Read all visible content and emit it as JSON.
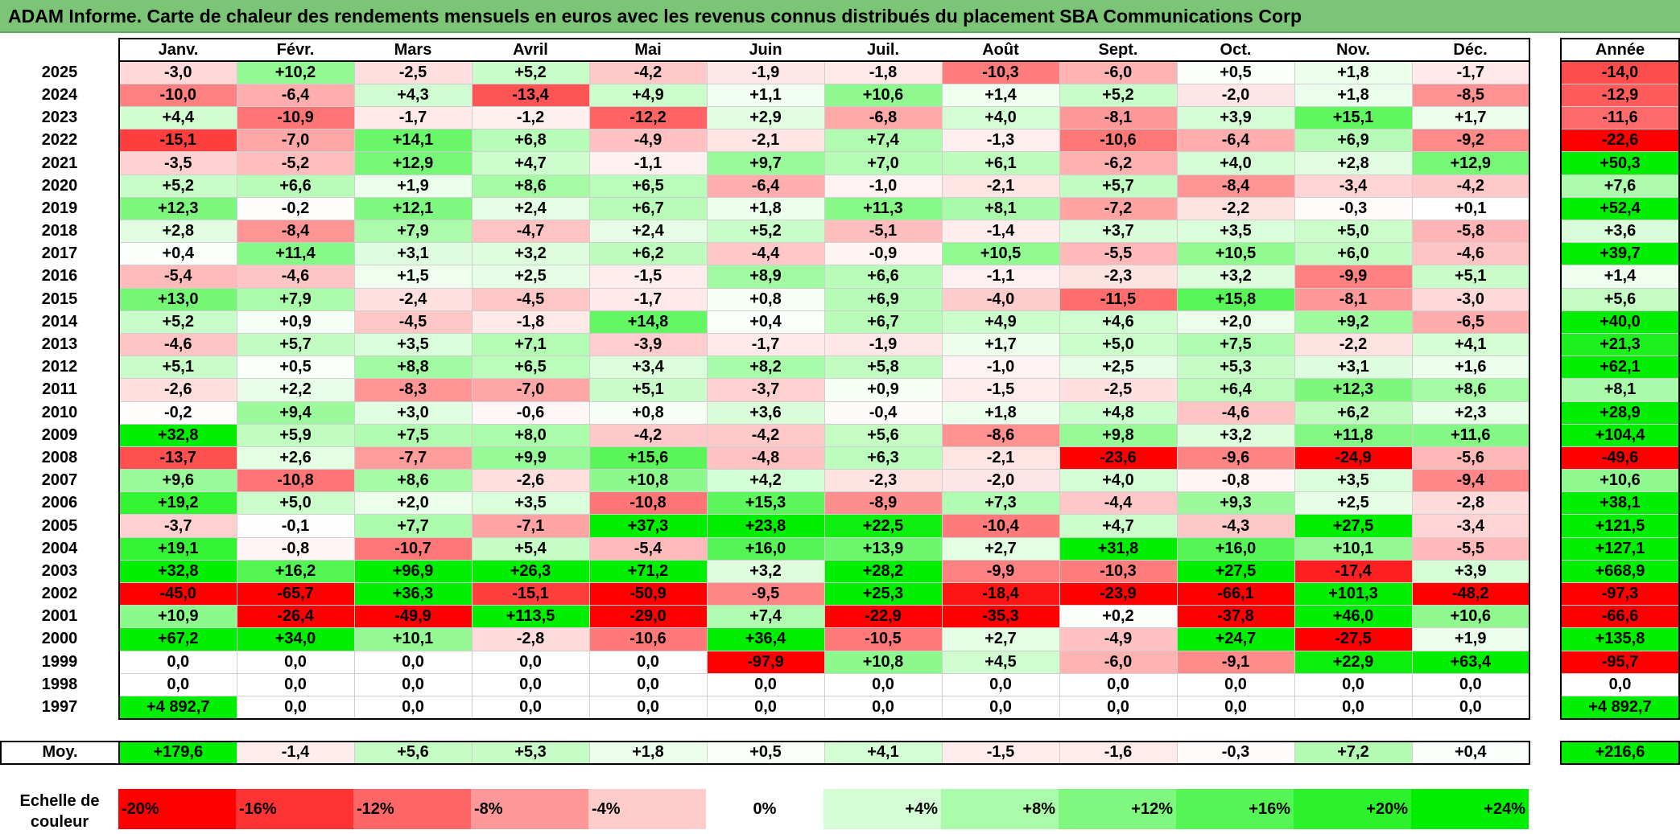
{
  "title": "ADAM Informe. Carte de chaleur des rendements mensuels en euros avec les revenus connus distribués du placement SBA Communications Corp",
  "chart_data": {
    "type": "heatmap",
    "title": "ADAM Informe. Carte de chaleur des rendements mensuels en euros avec les revenus connus distribués du placement SBA Communications Corp",
    "columns": [
      "Janv.",
      "Févr.",
      "Mars",
      "Avril",
      "Mai",
      "Juin",
      "Juil.",
      "Août",
      "Sept.",
      "Oct.",
      "Nov.",
      "Déc."
    ],
    "year_header": "Année",
    "rows": [
      {
        "year": "2025",
        "values": [
          "-3,0",
          "+10,2",
          "-2,5",
          "+5,2",
          "-4,2",
          "-1,9",
          "-1,8",
          "-10,3",
          "-6,0",
          "+0,5",
          "+1,8",
          "-1,7"
        ],
        "annual": "-14,0"
      },
      {
        "year": "2024",
        "values": [
          "-10,0",
          "-6,4",
          "+4,3",
          "-13,4",
          "+4,9",
          "+1,1",
          "+10,6",
          "+1,4",
          "+5,2",
          "-2,0",
          "+1,8",
          "-8,5"
        ],
        "annual": "-12,9"
      },
      {
        "year": "2023",
        "values": [
          "+4,4",
          "-10,9",
          "-1,7",
          "-1,2",
          "-12,2",
          "+2,9",
          "-6,8",
          "+4,0",
          "-8,1",
          "+3,9",
          "+15,1",
          "+1,7"
        ],
        "annual": "-11,6"
      },
      {
        "year": "2022",
        "values": [
          "-15,1",
          "-7,0",
          "+14,1",
          "+6,8",
          "-4,9",
          "-2,1",
          "+7,4",
          "-1,3",
          "-10,6",
          "-6,4",
          "+6,9",
          "-9,2"
        ],
        "annual": "-22,6"
      },
      {
        "year": "2021",
        "values": [
          "-3,5",
          "-5,2",
          "+12,9",
          "+4,7",
          "-1,1",
          "+9,7",
          "+7,0",
          "+6,1",
          "-6,2",
          "+4,0",
          "+2,8",
          "+12,9"
        ],
        "annual": "+50,3"
      },
      {
        "year": "2020",
        "values": [
          "+5,2",
          "+6,6",
          "+1,9",
          "+8,6",
          "+6,5",
          "-6,4",
          "-1,0",
          "-2,1",
          "+5,7",
          "-8,4",
          "-3,4",
          "-4,2"
        ],
        "annual": "+7,6"
      },
      {
        "year": "2019",
        "values": [
          "+12,3",
          "-0,2",
          "+12,1",
          "+2,4",
          "+6,7",
          "+1,8",
          "+11,3",
          "+8,1",
          "-7,2",
          "-2,2",
          "-0,3",
          "+0,1"
        ],
        "annual": "+52,4"
      },
      {
        "year": "2018",
        "values": [
          "+2,8",
          "-8,4",
          "+7,9",
          "-4,7",
          "+2,4",
          "+5,2",
          "-5,1",
          "-1,4",
          "+3,7",
          "+3,5",
          "+5,0",
          "-5,8"
        ],
        "annual": "+3,6"
      },
      {
        "year": "2017",
        "values": [
          "+0,4",
          "+11,4",
          "+3,1",
          "+3,2",
          "+6,2",
          "-4,4",
          "-0,9",
          "+10,5",
          "-5,5",
          "+10,5",
          "+6,0",
          "-4,6"
        ],
        "annual": "+39,7"
      },
      {
        "year": "2016",
        "values": [
          "-5,4",
          "-4,6",
          "+1,5",
          "+2,5",
          "-1,5",
          "+8,9",
          "+6,6",
          "-1,1",
          "-2,3",
          "+3,2",
          "-9,9",
          "+5,1"
        ],
        "annual": "+1,4"
      },
      {
        "year": "2015",
        "values": [
          "+13,0",
          "+7,9",
          "-2,4",
          "-4,5",
          "-1,7",
          "+0,8",
          "+6,9",
          "-4,0",
          "-11,5",
          "+15,8",
          "-8,1",
          "-3,0"
        ],
        "annual": "+5,6"
      },
      {
        "year": "2014",
        "values": [
          "+5,2",
          "+0,9",
          "-4,5",
          "-1,8",
          "+14,8",
          "+0,4",
          "+6,7",
          "+4,9",
          "+4,6",
          "+2,0",
          "+9,2",
          "-6,5"
        ],
        "annual": "+40,0"
      },
      {
        "year": "2013",
        "values": [
          "-4,6",
          "+5,7",
          "+3,5",
          "+7,1",
          "-3,9",
          "-1,7",
          "-1,9",
          "+1,7",
          "+5,0",
          "+7,5",
          "-2,2",
          "+4,1"
        ],
        "annual": "+21,3"
      },
      {
        "year": "2012",
        "values": [
          "+5,1",
          "+0,5",
          "+8,8",
          "+6,5",
          "+3,4",
          "+8,2",
          "+5,8",
          "-1,0",
          "+2,5",
          "+5,3",
          "+3,1",
          "+1,6"
        ],
        "annual": "+62,1"
      },
      {
        "year": "2011",
        "values": [
          "-2,6",
          "+2,2",
          "-8,3",
          "-7,0",
          "+5,1",
          "-3,7",
          "+0,9",
          "-1,5",
          "-2,5",
          "+6,4",
          "+12,3",
          "+8,6"
        ],
        "annual": "+8,1"
      },
      {
        "year": "2010",
        "values": [
          "-0,2",
          "+9,4",
          "+3,0",
          "-0,6",
          "+0,8",
          "+3,6",
          "-0,4",
          "+1,8",
          "+4,8",
          "-4,6",
          "+6,2",
          "+2,3"
        ],
        "annual": "+28,9"
      },
      {
        "year": "2009",
        "values": [
          "+32,8",
          "+5,9",
          "+7,5",
          "+8,0",
          "-4,2",
          "-4,2",
          "+5,6",
          "-8,6",
          "+9,8",
          "+3,2",
          "+11,8",
          "+11,6"
        ],
        "annual": "+104,4"
      },
      {
        "year": "2008",
        "values": [
          "-13,7",
          "+2,6",
          "-7,7",
          "+9,9",
          "+15,6",
          "-4,8",
          "+6,3",
          "-2,1",
          "-23,6",
          "-9,6",
          "-24,9",
          "-5,6"
        ],
        "annual": "-49,6"
      },
      {
        "year": "2007",
        "values": [
          "+9,6",
          "-10,8",
          "+8,6",
          "-2,6",
          "+10,8",
          "+4,2",
          "-2,3",
          "-2,0",
          "+4,0",
          "-0,8",
          "+3,5",
          "-9,4"
        ],
        "annual": "+10,6"
      },
      {
        "year": "2006",
        "values": [
          "+19,2",
          "+5,0",
          "+2,0",
          "+3,5",
          "-10,8",
          "+15,3",
          "-8,9",
          "+7,3",
          "-4,4",
          "+9,3",
          "+2,5",
          "-2,8"
        ],
        "annual": "+38,1"
      },
      {
        "year": "2005",
        "values": [
          "-3,7",
          "-0,1",
          "+7,7",
          "-7,1",
          "+37,3",
          "+23,8",
          "+22,5",
          "-10,4",
          "+4,7",
          "-4,3",
          "+27,5",
          "-3,4"
        ],
        "annual": "+121,5"
      },
      {
        "year": "2004",
        "values": [
          "+19,1",
          "-0,8",
          "-10,7",
          "+5,4",
          "-5,4",
          "+16,0",
          "+13,9",
          "+2,7",
          "+31,8",
          "+16,0",
          "+10,1",
          "-5,5"
        ],
        "annual": "+127,1"
      },
      {
        "year": "2003",
        "values": [
          "+32,8",
          "+16,2",
          "+96,9",
          "+26,3",
          "+71,2",
          "+3,2",
          "+28,2",
          "-9,9",
          "-10,3",
          "+27,5",
          "-17,4",
          "+3,9"
        ],
        "annual": "+668,9"
      },
      {
        "year": "2002",
        "values": [
          "-45,0",
          "-65,7",
          "+36,3",
          "-15,1",
          "-50,9",
          "-9,5",
          "+25,3",
          "-18,4",
          "-23,9",
          "-66,1",
          "+101,3",
          "-48,2"
        ],
        "annual": "-97,3"
      },
      {
        "year": "2001",
        "values": [
          "+10,9",
          "-26,4",
          "-49,9",
          "+113,5",
          "-29,0",
          "+7,4",
          "-22,9",
          "-35,3",
          "+0,2",
          "-37,8",
          "+46,0",
          "+10,6"
        ],
        "annual": "-66,6"
      },
      {
        "year": "2000",
        "values": [
          "+67,2",
          "+34,0",
          "+10,1",
          "-2,8",
          "-10,6",
          "+36,4",
          "-10,5",
          "+2,7",
          "-4,9",
          "+24,7",
          "-27,5",
          "+1,9"
        ],
        "annual": "+135,8"
      },
      {
        "year": "1999",
        "values": [
          "0,0",
          "0,0",
          "0,0",
          "0,0",
          "0,0",
          "-97,9",
          "+10,8",
          "+4,5",
          "-6,0",
          "-9,1",
          "+22,9",
          "+63,4"
        ],
        "annual": "-95,7"
      },
      {
        "year": "1998",
        "values": [
          "0,0",
          "0,0",
          "0,0",
          "0,0",
          "0,0",
          "0,0",
          "0,0",
          "0,0",
          "0,0",
          "0,0",
          "0,0",
          "0,0"
        ],
        "annual": "0,0"
      },
      {
        "year": "1997",
        "values": [
          "+4 892,7",
          "0,0",
          "0,0",
          "0,0",
          "0,0",
          "0,0",
          "0,0",
          "0,0",
          "0,0",
          "0,0",
          "0,0",
          "0,0"
        ],
        "annual": "+4 892,7"
      }
    ],
    "average": {
      "label": "Moy.",
      "values": [
        "+179,6",
        "-1,4",
        "+5,6",
        "+5,3",
        "+1,8",
        "+0,5",
        "+4,1",
        "-1,5",
        "-1,6",
        "-0,3",
        "+7,2",
        "+0,4"
      ],
      "annual": "+216,6"
    },
    "scale": {
      "label": "Echelle de couleur",
      "stops": [
        {
          "label": "-20%",
          "value": -20,
          "color": "#ff0000"
        },
        {
          "label": "-16%",
          "value": -16,
          "color": "#ff3333"
        },
        {
          "label": "-12%",
          "value": -12,
          "color": "#ff6666"
        },
        {
          "label": "-8%",
          "value": -8,
          "color": "#ff9999"
        },
        {
          "label": "-4%",
          "value": -4,
          "color": "#ffcccc"
        },
        {
          "label": "0%",
          "value": 0,
          "color": "#ffffff"
        },
        {
          "label": "+4%",
          "value": 4,
          "color": "#d5fdd5"
        },
        {
          "label": "+8%",
          "value": 8,
          "color": "#aafbaa"
        },
        {
          "label": "+12%",
          "value": 12,
          "color": "#80f880"
        },
        {
          "label": "+16%",
          "value": 16,
          "color": "#55f555"
        },
        {
          "label": "+20%",
          "value": 20,
          "color": "#2bf22b"
        },
        {
          "label": "+24%",
          "value": 24,
          "color": "#00ee00"
        }
      ]
    }
  }
}
